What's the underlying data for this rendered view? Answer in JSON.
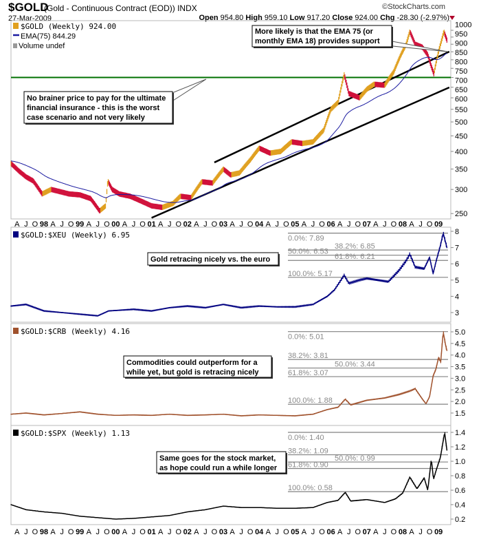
{
  "header": {
    "symbol": "$GOLD",
    "description": "(Gold - Continuous Contract (EOD)) INDX",
    "date": "27-Mar-2009",
    "brand": "©StockCharts.com",
    "open_label": "Open",
    "open": "954.80",
    "high_label": "High",
    "high": "959.10",
    "low_label": "Low",
    "low": "917.20",
    "close_label": "Close",
    "close": "924.00",
    "chg_label": "Chg",
    "chg": "-28.30 (-2.97%)"
  },
  "colors": {
    "gold": "#e0a020",
    "gold_down": "#d0103a",
    "ema": "#1a1aa0",
    "xeu": "#000080",
    "crb": "#a0522d",
    "spx": "#000000",
    "support": "#007000",
    "fib": "#808080"
  },
  "x_axis": {
    "start": 1997.08,
    "end": 2009.24,
    "month_letters": [
      "A",
      "J",
      "O"
    ],
    "year_labels": [
      "98",
      "99",
      "00",
      "01",
      "02",
      "03",
      "04",
      "05",
      "06",
      "07",
      "08",
      "09"
    ]
  },
  "chart_data": [
    {
      "type": "line",
      "title": "$GOLD (Weekly) 924.00",
      "legend": [
        "$GOLD (Weekly) 924.00",
        "EMA(75) 844.29",
        "Volume undef"
      ],
      "scale": "log",
      "ylim": [
        240,
        1060
      ],
      "yticks": [
        250,
        300,
        350,
        400,
        450,
        500,
        550,
        600,
        650,
        700,
        750,
        800,
        850,
        900,
        950,
        1000
      ],
      "x": [
        1997.08,
        1997.3,
        1997.5,
        1997.7,
        1997.95,
        1998.2,
        1998.45,
        1998.7,
        1999.0,
        1999.3,
        1999.55,
        1999.72,
        1999.78,
        1999.9,
        2000.1,
        2000.4,
        2000.7,
        2001.0,
        2001.3,
        2001.6,
        2001.8,
        2002.1,
        2002.4,
        2002.7,
        2003.0,
        2003.2,
        2003.45,
        2003.75,
        2004.0,
        2004.3,
        2004.6,
        2004.9,
        2005.2,
        2005.5,
        2005.8,
        2006.0,
        2006.2,
        2006.37,
        2006.5,
        2006.8,
        2007.0,
        2007.2,
        2007.5,
        2007.75,
        2007.95,
        2008.1,
        2008.2,
        2008.35,
        2008.55,
        2008.7,
        2008.8,
        2008.87,
        2009.0,
        2009.1,
        2009.15,
        2009.24
      ],
      "values": [
        365,
        345,
        330,
        320,
        290,
        300,
        295,
        290,
        288,
        280,
        255,
        265,
        320,
        300,
        290,
        285,
        275,
        265,
        262,
        270,
        285,
        282,
        318,
        315,
        350,
        335,
        340,
        375,
        410,
        395,
        400,
        430,
        425,
        430,
        470,
        550,
        580,
        715,
        620,
        600,
        640,
        665,
        660,
        730,
        830,
        900,
        990,
        900,
        880,
        830,
        760,
        720,
        850,
        940,
        990,
        924
      ],
      "ema_period": 75,
      "reference_line": {
        "value": 700,
        "label": "support"
      },
      "trendlines": [
        {
          "from": [
            2001.0,
            242
          ],
          "to": [
            2009.3,
            649
          ]
        },
        {
          "from": [
            2002.75,
            368
          ],
          "to": [
            2009.3,
            851
          ]
        }
      ],
      "annotations": [
        [
          "More likely is that the EMA 75 (or",
          "monthly EMA 18) provides support"
        ],
        [
          "No brainer price to pay for the ultimate",
          "financial insurance - this is the worst",
          "case scenario and not very likely"
        ]
      ]
    },
    {
      "type": "line",
      "title": "$GOLD:$XEU (Weekly) 6.95",
      "ylim": [
        2.5,
        8.2
      ],
      "yticks": [
        3,
        4,
        5,
        6,
        7,
        8
      ],
      "x": [
        1997.08,
        1997.5,
        1998.0,
        1998.5,
        1999.0,
        1999.5,
        1999.8,
        2000.5,
        2001.0,
        2001.5,
        2002.0,
        2002.5,
        2003.0,
        2003.5,
        2004.0,
        2004.5,
        2005.0,
        2005.5,
        2005.9,
        2006.1,
        2006.37,
        2006.5,
        2006.8,
        2007.0,
        2007.3,
        2007.6,
        2007.9,
        2008.1,
        2008.2,
        2008.35,
        2008.6,
        2008.75,
        2008.85,
        2008.95,
        2009.05,
        2009.13,
        2009.24
      ],
      "values": [
        3.4,
        3.5,
        3.1,
        3.0,
        2.9,
        2.8,
        3.1,
        3.2,
        3.1,
        3.3,
        3.4,
        3.3,
        3.5,
        3.3,
        3.4,
        3.35,
        3.35,
        3.5,
        4.0,
        4.4,
        5.3,
        4.8,
        5.0,
        5.1,
        5.0,
        4.9,
        5.6,
        6.2,
        6.6,
        5.8,
        5.7,
        6.4,
        5.4,
        6.3,
        7.1,
        7.89,
        6.95
      ],
      "fibonacci": [
        {
          "label": "0.0%: 7.89",
          "value": 7.89
        },
        {
          "label": "38.2%: 6.85",
          "value": 6.85
        },
        {
          "label": "50.0%: 6.53",
          "value": 6.53
        },
        {
          "label": "61.8%: 6.21",
          "value": 6.21
        },
        {
          "label": "100.0%: 5.17",
          "value": 5.17
        }
      ],
      "annotations": [
        [
          "Gold retracing nicely vs. the euro"
        ]
      ]
    },
    {
      "type": "line",
      "title": "$GOLD:$CRB (Weekly) 4.16",
      "ylim": [
        1.2,
        5.0
      ],
      "yticks": [
        1.5,
        2.0,
        2.5,
        3.0,
        3.5,
        4.0,
        4.5,
        5.0
      ],
      "x": [
        1997.08,
        1997.5,
        1998.0,
        1998.5,
        1999.0,
        1999.5,
        2000.0,
        2000.5,
        2001.0,
        2001.5,
        2002.0,
        2002.5,
        2003.0,
        2003.5,
        2004.0,
        2004.5,
        2005.0,
        2005.5,
        2005.9,
        2006.2,
        2006.4,
        2006.55,
        2007.0,
        2007.5,
        2007.9,
        2008.2,
        2008.35,
        2008.55,
        2008.65,
        2008.75,
        2008.85,
        2008.93,
        2009.0,
        2009.06,
        2009.13,
        2009.2,
        2009.24
      ],
      "values": [
        1.45,
        1.5,
        1.42,
        1.48,
        1.55,
        1.45,
        1.4,
        1.42,
        1.4,
        1.45,
        1.4,
        1.42,
        1.45,
        1.38,
        1.42,
        1.4,
        1.38,
        1.45,
        1.65,
        1.75,
        2.1,
        1.85,
        2.05,
        2.15,
        2.3,
        2.45,
        2.55,
        2.1,
        1.9,
        2.2,
        3.1,
        3.4,
        3.9,
        3.7,
        5.0,
        4.4,
        4.16
      ],
      "fibonacci": [
        {
          "label": "0.0%: 5.01",
          "value": 5.01
        },
        {
          "label": "38.2%: 3.81",
          "value": 3.81
        },
        {
          "label": "50.0%: 3.44",
          "value": 3.44
        },
        {
          "label": "61.8%: 3.07",
          "value": 3.07
        },
        {
          "label": "100.0%: 1.88",
          "value": 1.88
        }
      ],
      "annotations": [
        [
          "Commodities could outperform for a",
          "while yet, but gold is retracing nicely"
        ]
      ]
    },
    {
      "type": "line",
      "title": "$GOLD:$SPX (Weekly) 1.13",
      "ylim": [
        0.12,
        1.45
      ],
      "yticks": [
        0.2,
        0.4,
        0.6,
        0.8,
        1.0,
        1.2,
        1.4
      ],
      "x": [
        1997.08,
        1997.5,
        1998.0,
        1998.5,
        1999.0,
        1999.5,
        2000.0,
        2000.5,
        2001.0,
        2001.5,
        2002.0,
        2002.5,
        2003.0,
        2003.5,
        2004.0,
        2004.5,
        2005.0,
        2005.5,
        2005.9,
        2006.2,
        2006.4,
        2006.55,
        2007.0,
        2007.5,
        2007.8,
        2008.0,
        2008.2,
        2008.4,
        2008.6,
        2008.7,
        2008.8,
        2008.86,
        2008.95,
        2009.05,
        2009.17,
        2009.24
      ],
      "values": [
        0.4,
        0.33,
        0.3,
        0.28,
        0.24,
        0.22,
        0.2,
        0.21,
        0.23,
        0.25,
        0.3,
        0.33,
        0.38,
        0.36,
        0.36,
        0.35,
        0.35,
        0.36,
        0.43,
        0.46,
        0.57,
        0.45,
        0.47,
        0.43,
        0.48,
        0.56,
        0.78,
        0.62,
        0.77,
        0.6,
        1.03,
        0.75,
        0.9,
        1.05,
        1.4,
        1.13
      ],
      "fibonacci": [
        {
          "label": "0.0%: 1.40",
          "value": 1.4
        },
        {
          "label": "38.2%: 1.09",
          "value": 1.09
        },
        {
          "label": "50.0%: 0.99",
          "value": 0.99
        },
        {
          "label": "61.8%: 0.90",
          "value": 0.9
        },
        {
          "label": "100.0%: 0.58",
          "value": 0.58
        }
      ],
      "annotations": [
        [
          "Same goes for the stock market,",
          "as hope could run a while longer"
        ]
      ]
    }
  ]
}
